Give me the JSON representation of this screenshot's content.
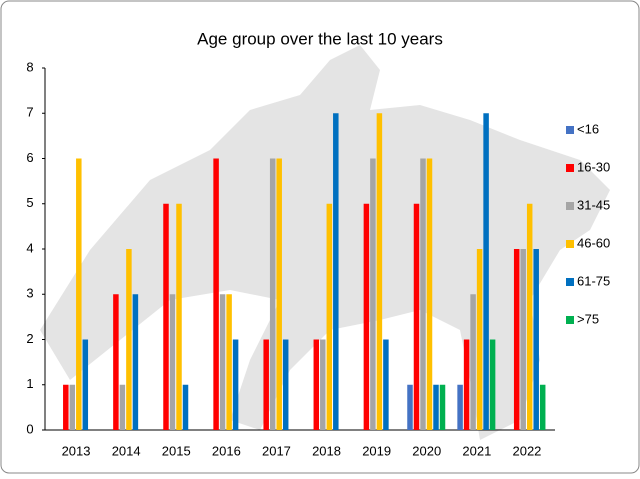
{
  "chart_data": {
    "type": "bar",
    "title": "Age group over the last 10 years",
    "categories": [
      "2013",
      "2014",
      "2015",
      "2016",
      "2017",
      "2018",
      "2019",
      "2020",
      "2021",
      "2022"
    ],
    "series": [
      {
        "name": "<16",
        "color": "#4472c4",
        "values": [
          0,
          0,
          0,
          0,
          0,
          0,
          0,
          1,
          1,
          0
        ]
      },
      {
        "name": "16-30",
        "color": "#ff0000",
        "values": [
          1,
          3,
          5,
          6,
          2,
          2,
          5,
          5,
          2,
          4
        ]
      },
      {
        "name": "31-45",
        "color": "#a5a5a5",
        "values": [
          1,
          1,
          3,
          3,
          6,
          2,
          6,
          6,
          3,
          4
        ]
      },
      {
        "name": "46-60",
        "color": "#ffc000",
        "values": [
          6,
          4,
          5,
          3,
          6,
          5,
          7,
          6,
          4,
          5
        ]
      },
      {
        "name": "61-75",
        "color": "#0070c0",
        "values": [
          2,
          3,
          1,
          2,
          2,
          7,
          2,
          1,
          7,
          4
        ]
      },
      {
        "name": ">75",
        "color": "#00b050",
        "values": [
          0,
          0,
          0,
          0,
          0,
          0,
          0,
          1,
          2,
          1
        ]
      }
    ],
    "ylim": [
      0,
      8
    ],
    "yticks": [
      0,
      1,
      2,
      3,
      4,
      5,
      6,
      7,
      8
    ],
    "grid": false,
    "legend": "right"
  }
}
